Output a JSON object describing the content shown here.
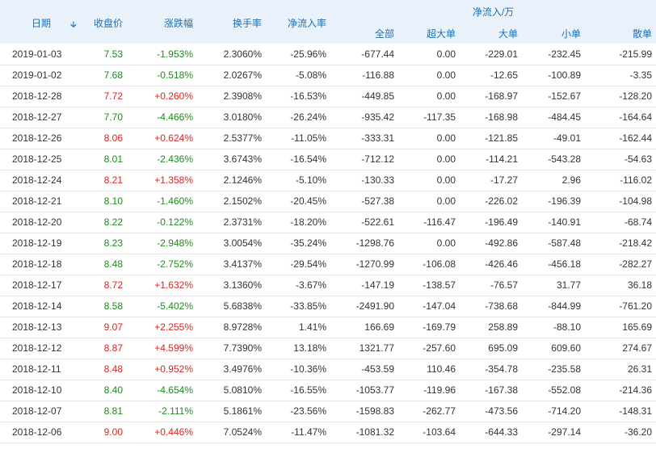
{
  "header": {
    "date": "日期",
    "close": "收盘价",
    "change": "涨跌幅",
    "turnover": "换手率",
    "net_rate": "净流入率",
    "net_group": "净流入/万",
    "sub": [
      "全部",
      "超大单",
      "大单",
      "小单",
      "散单"
    ],
    "sort_icon": "arrow-down-icon"
  },
  "colors": {
    "up": "#e02222",
    "down": "#1e8a1e",
    "header_bg": "#e9f2fb",
    "header_text": "#1f6fb5"
  },
  "rows": [
    {
      "date": "2019-01-03",
      "close": "7.53",
      "change": "-1.953%",
      "turnover": "2.3060%",
      "rate": "-25.96%",
      "all": "-677.44",
      "super": "0.00",
      "big": "-229.01",
      "small": "-232.45",
      "retail": "-215.99",
      "dir": "down"
    },
    {
      "date": "2019-01-02",
      "close": "7.68",
      "change": "-0.518%",
      "turnover": "2.0267%",
      "rate": "-5.08%",
      "all": "-116.88",
      "super": "0.00",
      "big": "-12.65",
      "small": "-100.89",
      "retail": "-3.35",
      "dir": "down"
    },
    {
      "date": "2018-12-28",
      "close": "7.72",
      "change": "+0.260%",
      "turnover": "2.3908%",
      "rate": "-16.53%",
      "all": "-449.85",
      "super": "0.00",
      "big": "-168.97",
      "small": "-152.67",
      "retail": "-128.20",
      "dir": "up"
    },
    {
      "date": "2018-12-27",
      "close": "7.70",
      "change": "-4.466%",
      "turnover": "3.0180%",
      "rate": "-26.24%",
      "all": "-935.42",
      "super": "-117.35",
      "big": "-168.98",
      "small": "-484.45",
      "retail": "-164.64",
      "dir": "down"
    },
    {
      "date": "2018-12-26",
      "close": "8.06",
      "change": "+0.624%",
      "turnover": "2.5377%",
      "rate": "-11.05%",
      "all": "-333.31",
      "super": "0.00",
      "big": "-121.85",
      "small": "-49.01",
      "retail": "-162.44",
      "dir": "up"
    },
    {
      "date": "2018-12-25",
      "close": "8.01",
      "change": "-2.436%",
      "turnover": "3.6743%",
      "rate": "-16.54%",
      "all": "-712.12",
      "super": "0.00",
      "big": "-114.21",
      "small": "-543.28",
      "retail": "-54.63",
      "dir": "down"
    },
    {
      "date": "2018-12-24",
      "close": "8.21",
      "change": "+1.358%",
      "turnover": "2.1246%",
      "rate": "-5.10%",
      "all": "-130.33",
      "super": "0.00",
      "big": "-17.27",
      "small": "2.96",
      "retail": "-116.02",
      "dir": "up"
    },
    {
      "date": "2018-12-21",
      "close": "8.10",
      "change": "-1.460%",
      "turnover": "2.1502%",
      "rate": "-20.45%",
      "all": "-527.38",
      "super": "0.00",
      "big": "-226.02",
      "small": "-196.39",
      "retail": "-104.98",
      "dir": "down"
    },
    {
      "date": "2018-12-20",
      "close": "8.22",
      "change": "-0.122%",
      "turnover": "2.3731%",
      "rate": "-18.20%",
      "all": "-522.61",
      "super": "-116.47",
      "big": "-196.49",
      "small": "-140.91",
      "retail": "-68.74",
      "dir": "down"
    },
    {
      "date": "2018-12-19",
      "close": "8.23",
      "change": "-2.948%",
      "turnover": "3.0054%",
      "rate": "-35.24%",
      "all": "-1298.76",
      "super": "0.00",
      "big": "-492.86",
      "small": "-587.48",
      "retail": "-218.42",
      "dir": "down"
    },
    {
      "date": "2018-12-18",
      "close": "8.48",
      "change": "-2.752%",
      "turnover": "3.4137%",
      "rate": "-29.54%",
      "all": "-1270.99",
      "super": "-106.08",
      "big": "-426.46",
      "small": "-456.18",
      "retail": "-282.27",
      "dir": "down"
    },
    {
      "date": "2018-12-17",
      "close": "8.72",
      "change": "+1.632%",
      "turnover": "3.1360%",
      "rate": "-3.67%",
      "all": "-147.19",
      "super": "-138.57",
      "big": "-76.57",
      "small": "31.77",
      "retail": "36.18",
      "dir": "up"
    },
    {
      "date": "2018-12-14",
      "close": "8.58",
      "change": "-5.402%",
      "turnover": "5.6838%",
      "rate": "-33.85%",
      "all": "-2491.90",
      "super": "-147.04",
      "big": "-738.68",
      "small": "-844.99",
      "retail": "-761.20",
      "dir": "down"
    },
    {
      "date": "2018-12-13",
      "close": "9.07",
      "change": "+2.255%",
      "turnover": "8.9728%",
      "rate": "1.41%",
      "all": "166.69",
      "super": "-169.79",
      "big": "258.89",
      "small": "-88.10",
      "retail": "165.69",
      "dir": "up"
    },
    {
      "date": "2018-12-12",
      "close": "8.87",
      "change": "+4.599%",
      "turnover": "7.7390%",
      "rate": "13.18%",
      "all": "1321.77",
      "super": "-257.60",
      "big": "695.09",
      "small": "609.60",
      "retail": "274.67",
      "dir": "up"
    },
    {
      "date": "2018-12-11",
      "close": "8.48",
      "change": "+0.952%",
      "turnover": "3.4976%",
      "rate": "-10.36%",
      "all": "-453.59",
      "super": "110.46",
      "big": "-354.78",
      "small": "-235.58",
      "retail": "26.31",
      "dir": "up"
    },
    {
      "date": "2018-12-10",
      "close": "8.40",
      "change": "-4.654%",
      "turnover": "5.0810%",
      "rate": "-16.55%",
      "all": "-1053.77",
      "super": "-119.96",
      "big": "-167.38",
      "small": "-552.08",
      "retail": "-214.36",
      "dir": "down"
    },
    {
      "date": "2018-12-07",
      "close": "8.81",
      "change": "-2.111%",
      "turnover": "5.1861%",
      "rate": "-23.56%",
      "all": "-1598.83",
      "super": "-262.77",
      "big": "-473.56",
      "small": "-714.20",
      "retail": "-148.31",
      "dir": "down"
    },
    {
      "date": "2018-12-06",
      "close": "9.00",
      "change": "+0.446%",
      "turnover": "7.0524%",
      "rate": "-11.47%",
      "all": "-1081.32",
      "super": "-103.64",
      "big": "-644.33",
      "small": "-297.14",
      "retail": "-36.20",
      "dir": "up"
    }
  ]
}
